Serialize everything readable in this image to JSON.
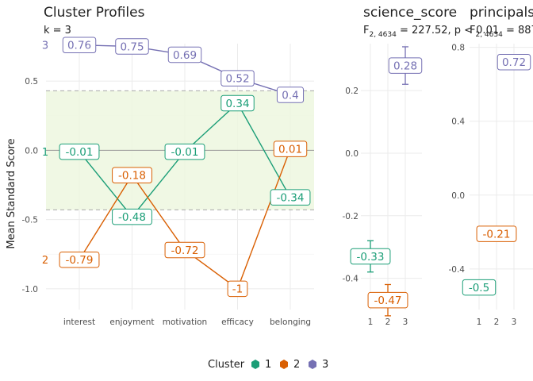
{
  "chart_data": [
    {
      "type": "line",
      "title": "Cluster Profiles",
      "subtitle": "k = 3",
      "ylabel": "Mean Standard Score",
      "categories": [
        "interest",
        "enjoyment",
        "motivation",
        "efficacy",
        "belonging"
      ],
      "ylim": [
        -1.15,
        0.77
      ],
      "yticks": [
        "-1.0",
        "-0.5",
        "0.0",
        "0.5"
      ],
      "band": [
        -0.43,
        0.43
      ],
      "series": [
        {
          "name": "1",
          "color": "#1b9e77",
          "values": [
            -0.01,
            -0.48,
            -0.01,
            0.34,
            -0.34
          ],
          "labels": [
            "-0.01",
            "-0.48",
            "-0.01",
            "0.34",
            "-0.34"
          ]
        },
        {
          "name": "2",
          "color": "#d95f02",
          "values": [
            -0.79,
            -0.18,
            -0.72,
            -1.0,
            0.01
          ],
          "labels": [
            "-0.79",
            "-0.18",
            "-0.72",
            "-1",
            "0.01"
          ]
        },
        {
          "name": "3",
          "color": "#7570b3",
          "values": [
            0.76,
            0.75,
            0.69,
            0.52,
            0.4
          ],
          "labels": [
            "0.76",
            "0.75",
            "0.69",
            "0.52",
            "0.4"
          ]
        }
      ],
      "legend": {
        "title": "Cluster",
        "position": "bottom"
      },
      "grid": true
    },
    {
      "type": "scatter",
      "title": "science_score",
      "subtitle_main": "F",
      "subtitle_sub": "2, 4634",
      "subtitle_rest": " = 227.52, p < 0.01",
      "categories": [
        "1",
        "2",
        "3"
      ],
      "ylim": [
        -0.5,
        0.35
      ],
      "yticks": [
        "-0.4",
        "-0.2",
        "0.0",
        "0.2"
      ],
      "values": [
        -0.33,
        -0.47,
        0.28
      ],
      "labels": [
        "-0.33",
        "-0.47",
        "0.28"
      ],
      "errors": [
        [
          -0.38,
          -0.28
        ],
        [
          -0.52,
          -0.42
        ],
        [
          0.22,
          0.34
        ]
      ],
      "colors": [
        "#1b9e77",
        "#d95f02",
        "#7570b3"
      ]
    },
    {
      "type": "scatter",
      "title": "principals",
      "subtitle_main": "F",
      "subtitle_sub": "2, 4634",
      "subtitle_rest": " = 887",
      "categories": [
        "1",
        "2",
        "3"
      ],
      "ylim": [
        -0.62,
        0.82
      ],
      "yticks": [
        "-0.4",
        "0.0",
        "0.4",
        "0.8"
      ],
      "values": [
        -0.5,
        -0.21,
        0.72
      ],
      "labels": [
        "-0.5",
        "-0.21",
        "0.72"
      ],
      "errors": [
        [
          -0.54,
          -0.46
        ],
        [
          -0.25,
          -0.17
        ],
        [
          0.68,
          0.76
        ]
      ],
      "colors": [
        "#1b9e77",
        "#d95f02",
        "#7570b3"
      ]
    }
  ]
}
